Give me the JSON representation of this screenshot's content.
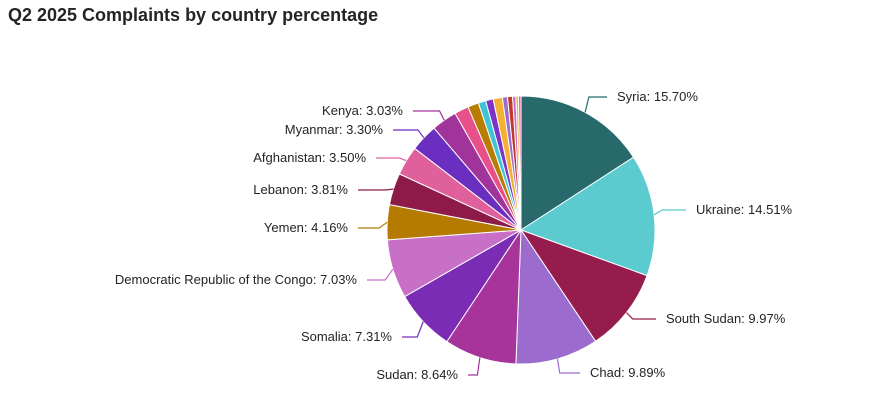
{
  "chart_data": {
    "type": "pie",
    "title": "Q2 2025 Complaints by country percentage",
    "slices": [
      {
        "label": "Syria: 15.70%",
        "value": 15.7,
        "color": "#28696B"
      },
      {
        "label": "Ukraine: 14.51%",
        "value": 14.51,
        "color": "#5BCBCF"
      },
      {
        "label": "South Sudan: 9.97%",
        "value": 9.97,
        "color": "#951C4C"
      },
      {
        "label": "Chad: 9.89%",
        "value": 9.89,
        "color": "#9B6BCE"
      },
      {
        "label": "Sudan: 8.64%",
        "value": 8.64,
        "color": "#A6349A"
      },
      {
        "label": "Somalia: 7.31%",
        "value": 7.31,
        "color": "#7A2DB4"
      },
      {
        "label": "Democratic Republic of the Congo: 7.03%",
        "value": 7.03,
        "color": "#C86FC7"
      },
      {
        "label": "Yemen: 4.16%",
        "value": 4.16,
        "color": "#B57A00"
      },
      {
        "label": "Lebanon: 3.81%",
        "value": 3.81,
        "color": "#8D1A48"
      },
      {
        "label": "Afghanistan: 3.50%",
        "value": 3.5,
        "color": "#E0609C"
      },
      {
        "label": "Myanmar: 3.30%",
        "value": 3.3,
        "color": "#6A2FC0"
      },
      {
        "label": "Kenya: 3.03%",
        "value": 3.03,
        "color": "#A0349A"
      },
      {
        "label": "",
        "value": 1.7,
        "color": "#E8508A"
      },
      {
        "label": "",
        "value": 1.3,
        "color": "#B87C00"
      },
      {
        "label": "",
        "value": 0.9,
        "color": "#3FC4D6"
      },
      {
        "label": "",
        "value": 0.9,
        "color": "#7D32C8"
      },
      {
        "label": "",
        "value": 1.1,
        "color": "#F5B133"
      },
      {
        "label": "",
        "value": 0.6,
        "color": "#9B6BCE"
      },
      {
        "label": "",
        "value": 0.6,
        "color": "#C0392B"
      },
      {
        "label": "",
        "value": 0.4,
        "color": "#C86FC7"
      },
      {
        "label": "",
        "value": 0.3,
        "color": "#F5B133"
      },
      {
        "label": "",
        "value": 0.3,
        "color": "#E0609C"
      }
    ]
  }
}
